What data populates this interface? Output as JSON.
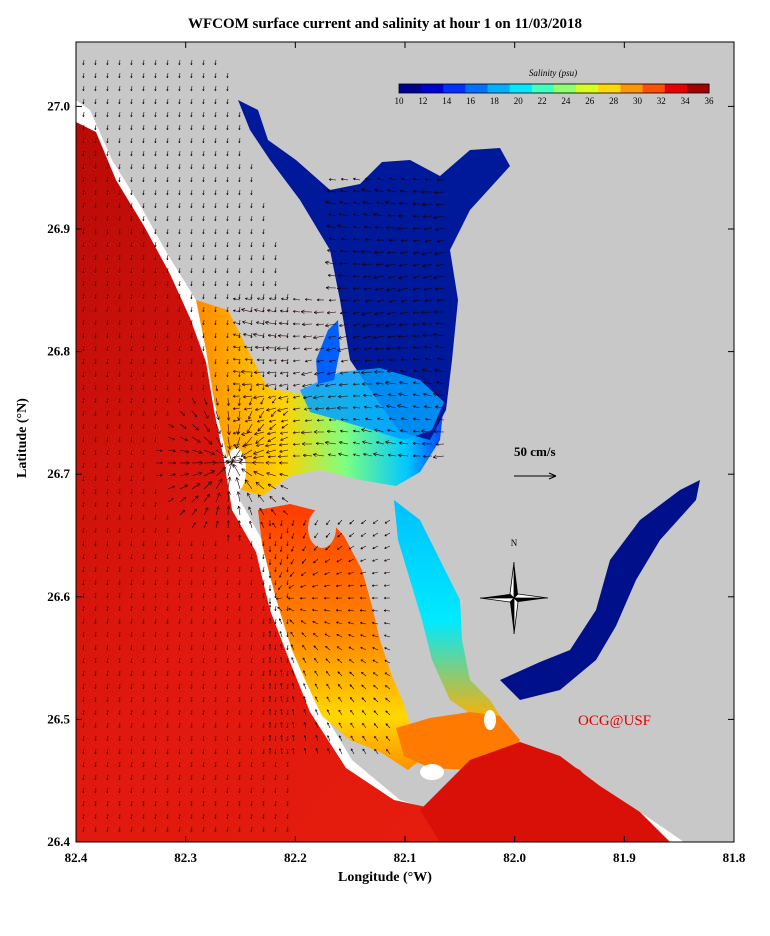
{
  "title": "WFCOM surface current and salinity at hour 1 on 11/03/2018",
  "x_axis": {
    "label": "Longitude (°W)",
    "ticks": [
      "82.4",
      "82.3",
      "82.2",
      "82.1",
      "82.0",
      "81.9",
      "81.8"
    ]
  },
  "y_axis": {
    "label": "Latitude (°N)",
    "ticks": [
      "26.4",
      "26.5",
      "26.6",
      "26.7",
      "26.8",
      "26.9",
      "27.0"
    ]
  },
  "colorbar": {
    "title": "Salinity (psu)",
    "ticks": [
      "10",
      "12",
      "14",
      "16",
      "18",
      "20",
      "22",
      "24",
      "26",
      "28",
      "30",
      "32",
      "34",
      "36"
    ],
    "colors": [
      "#00008f",
      "#0000d0",
      "#0030ff",
      "#0070ff",
      "#00b0ff",
      "#00eaff",
      "#40ffc0",
      "#90ff70",
      "#d8ff20",
      "#ffd800",
      "#ff9800",
      "#ff5000",
      "#e80000",
      "#a00000"
    ]
  },
  "reference_vector": {
    "label": "50 cm/s"
  },
  "north_arrow": {
    "label": "N"
  },
  "credit": "OCG@USF",
  "colors": {
    "land": "#c8c8c8",
    "coast_fringe": "#ffffff",
    "gulf": "#e0180e",
    "gulf_deep": "#c81008",
    "bay_fresh": "#00189a"
  },
  "chart_data": {
    "type": "map",
    "title": "WFCOM surface current and salinity at hour 1 on 11/03/2018",
    "xlabel": "Longitude (°W)",
    "ylabel": "Latitude (°N)",
    "xlim": [
      82.4,
      81.8
    ],
    "ylim": [
      26.4,
      27.05
    ],
    "colorbar_range": [
      10,
      36
    ],
    "colorbar_units": "Salinity (psu)",
    "reference_vector_cm_s": 50,
    "fields": [
      "surface current vectors",
      "surface salinity"
    ]
  }
}
